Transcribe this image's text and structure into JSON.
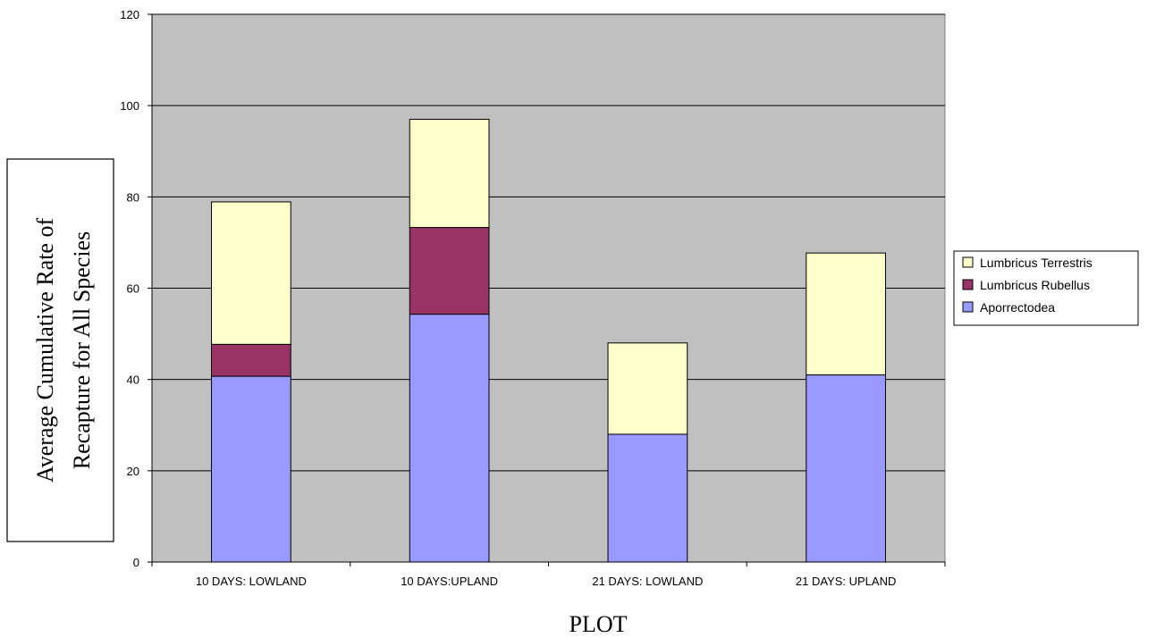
{
  "chart_data": {
    "type": "bar",
    "stacked": true,
    "title": "",
    "xlabel": "PLOT",
    "ylabel_lines": [
      "Average Cumulative Rate of",
      "Recapture for All Species"
    ],
    "categories": [
      "10 DAYS: LOWLAND",
      "10 DAYS:UPLAND",
      "21 DAYS: LOWLAND",
      "21 DAYS: UPLAND"
    ],
    "series": [
      {
        "name": "Aporrectodea",
        "values": [
          40.7,
          54.3,
          28.0,
          41.0
        ],
        "color": "#9999ff"
      },
      {
        "name": "Lumbricus Rubellus",
        "values": [
          7.0,
          19.0,
          0,
          0
        ],
        "color": "#993366"
      },
      {
        "name": "Lumbricus Terrestris",
        "values": [
          31.2,
          23.7,
          20.0,
          26.7
        ],
        "color": "#ffffcc"
      }
    ],
    "ylim": [
      0,
      120
    ],
    "yticks": [
      "0",
      "20",
      "40",
      "60",
      "80",
      "100",
      "120"
    ],
    "grid": true,
    "plot_background": "#c0c0c0",
    "legend_position": "right",
    "legend_order": [
      "Lumbricus Terrestris",
      "Lumbricus Rubellus",
      "Aporrectodea"
    ]
  }
}
